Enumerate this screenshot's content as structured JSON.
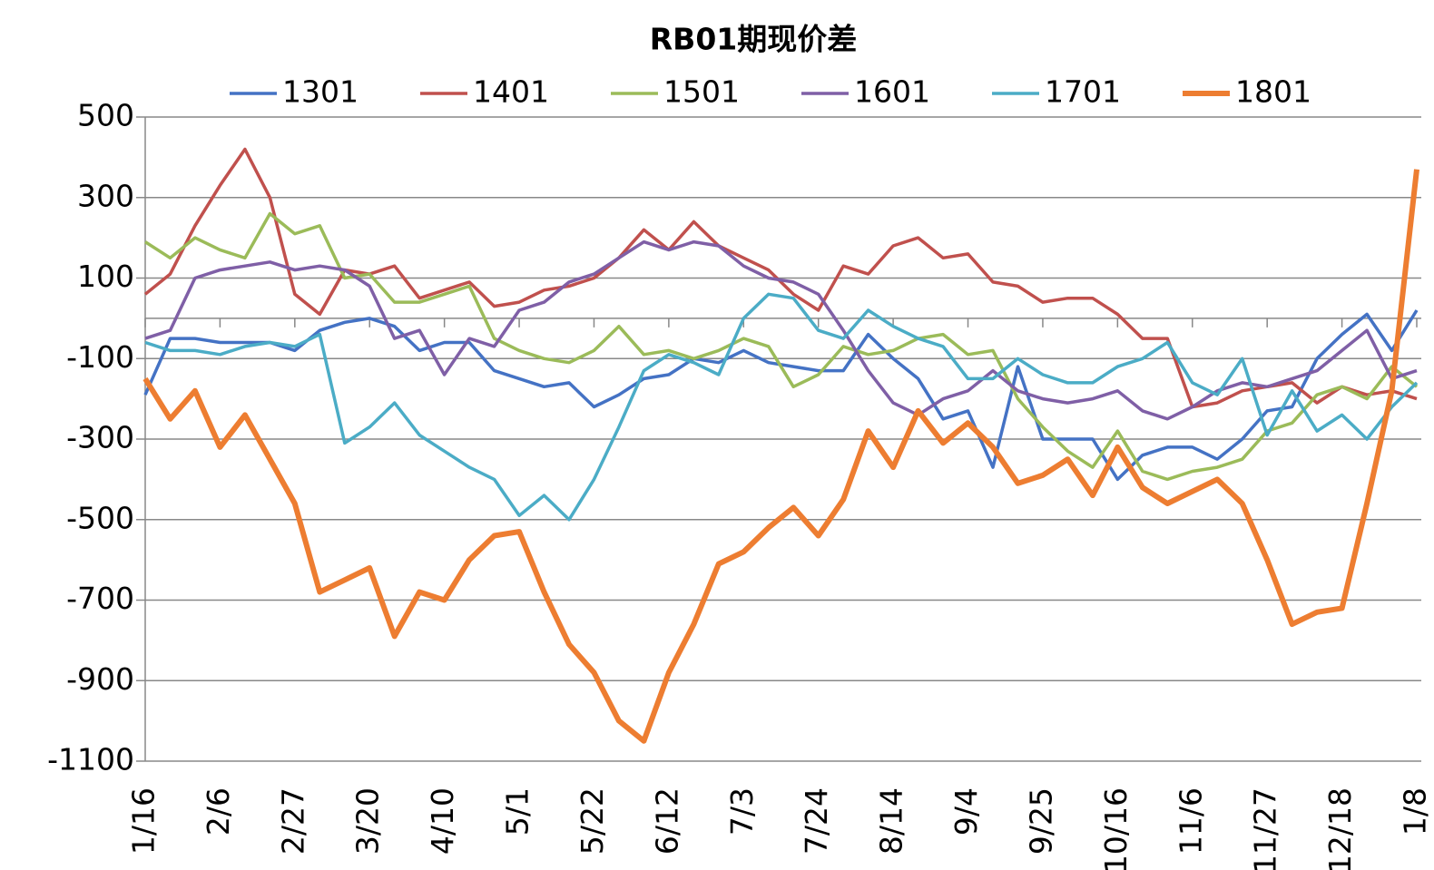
{
  "chart_data": {
    "type": "line",
    "title": "RB01期现价差",
    "categories": [
      "1/16",
      null,
      null,
      "2/6",
      null,
      null,
      "2/27",
      null,
      null,
      "3/20",
      null,
      null,
      "4/10",
      null,
      null,
      "5/1",
      null,
      null,
      "5/22",
      null,
      null,
      "6/12",
      null,
      null,
      "7/3",
      null,
      null,
      "7/24",
      null,
      null,
      "8/14",
      null,
      null,
      "9/4",
      null,
      null,
      "9/25",
      null,
      null,
      "10/16",
      null,
      null,
      "11/6",
      null,
      null,
      "11/27",
      null,
      null,
      "12/18",
      null,
      null,
      "1/8"
    ],
    "ylim": [
      -1100,
      500
    ],
    "yticks": [
      -1100,
      -900,
      -700,
      -500,
      -300,
      -100,
      100,
      300,
      500
    ],
    "grid": true,
    "series": [
      {
        "name": "1301",
        "color": "#4472c4",
        "values": [
          -190,
          -50,
          -50,
          -60,
          -60,
          -60,
          -80,
          -30,
          -10,
          0,
          -20,
          -80,
          -60,
          -60,
          -130,
          -150,
          -170,
          -160,
          -220,
          -190,
          -150,
          -140,
          -100,
          -110,
          -80,
          -110,
          -120,
          -130,
          -130,
          -40,
          -100,
          -150,
          -250,
          -230,
          -370,
          -120,
          -300,
          -300,
          -300,
          -400,
          -340,
          -320,
          -320,
          -350,
          -300,
          -230,
          -220,
          -100,
          -40,
          10,
          -80,
          20
        ]
      },
      {
        "name": "1401",
        "color": "#c0504d",
        "values": [
          60,
          110,
          230,
          330,
          420,
          300,
          60,
          10,
          120,
          110,
          130,
          50,
          70,
          90,
          30,
          40,
          70,
          80,
          100,
          150,
          220,
          170,
          240,
          180,
          150,
          120,
          60,
          20,
          130,
          110,
          180,
          200,
          150,
          160,
          90,
          80,
          40,
          50,
          50,
          10,
          -50,
          -50,
          -220,
          -210,
          -180,
          -170,
          -160,
          -210,
          -170,
          -190,
          -180,
          -200
        ]
      },
      {
        "name": "1501",
        "color": "#9bbb59",
        "values": [
          190,
          150,
          200,
          170,
          150,
          260,
          210,
          230,
          100,
          110,
          40,
          40,
          60,
          80,
          -50,
          -80,
          -100,
          -110,
          -80,
          -20,
          -90,
          -80,
          -100,
          -80,
          -50,
          -70,
          -170,
          -140,
          -70,
          -90,
          -80,
          -50,
          -40,
          -90,
          -80,
          -200,
          -270,
          -330,
          -370,
          -280,
          -380,
          -400,
          -380,
          -370,
          -350,
          -280,
          -260,
          -190,
          -170,
          -200,
          -120,
          -170
        ]
      },
      {
        "name": "1601",
        "color": "#7f5fa6",
        "values": [
          -50,
          -30,
          100,
          120,
          130,
          140,
          120,
          130,
          120,
          80,
          -50,
          -30,
          -140,
          -50,
          -70,
          20,
          40,
          90,
          110,
          150,
          190,
          170,
          190,
          180,
          130,
          100,
          90,
          60,
          -30,
          -130,
          -210,
          -240,
          -200,
          -180,
          -130,
          -180,
          -200,
          -210,
          -200,
          -180,
          -230,
          -250,
          -220,
          -180,
          -160,
          -170,
          -150,
          -130,
          -80,
          -30,
          -150,
          -130
        ]
      },
      {
        "name": "1701",
        "color": "#4bacc6",
        "values": [
          -60,
          -80,
          -80,
          -90,
          -70,
          -60,
          -70,
          -40,
          -310,
          -270,
          -210,
          -290,
          -330,
          -370,
          -400,
          -490,
          -440,
          -500,
          -400,
          -270,
          -130,
          -90,
          -110,
          -140,
          0,
          60,
          50,
          -30,
          -50,
          20,
          -20,
          -50,
          -70,
          -150,
          -150,
          -100,
          -140,
          -160,
          -160,
          -120,
          -100,
          -60,
          -160,
          -190,
          -100,
          -290,
          -180,
          -280,
          -240,
          -300,
          -220,
          -160
        ]
      },
      {
        "name": "1801",
        "color": "#ed7d31",
        "values": [
          -150,
          -250,
          -180,
          -320,
          -240,
          -350,
          -460,
          -680,
          -650,
          -620,
          -790,
          -680,
          -700,
          -600,
          -540,
          -530,
          -680,
          -810,
          -880,
          -1000,
          -1050,
          -880,
          -760,
          -610,
          -580,
          -520,
          -470,
          -540,
          -450,
          -280,
          -370,
          -230,
          -310,
          -260,
          -320,
          -410,
          -390,
          -350,
          -440,
          -320,
          -420,
          -460,
          -430,
          -400,
          -460,
          -600,
          -760,
          -730,
          -720,
          -460,
          -180,
          370
        ]
      }
    ]
  }
}
